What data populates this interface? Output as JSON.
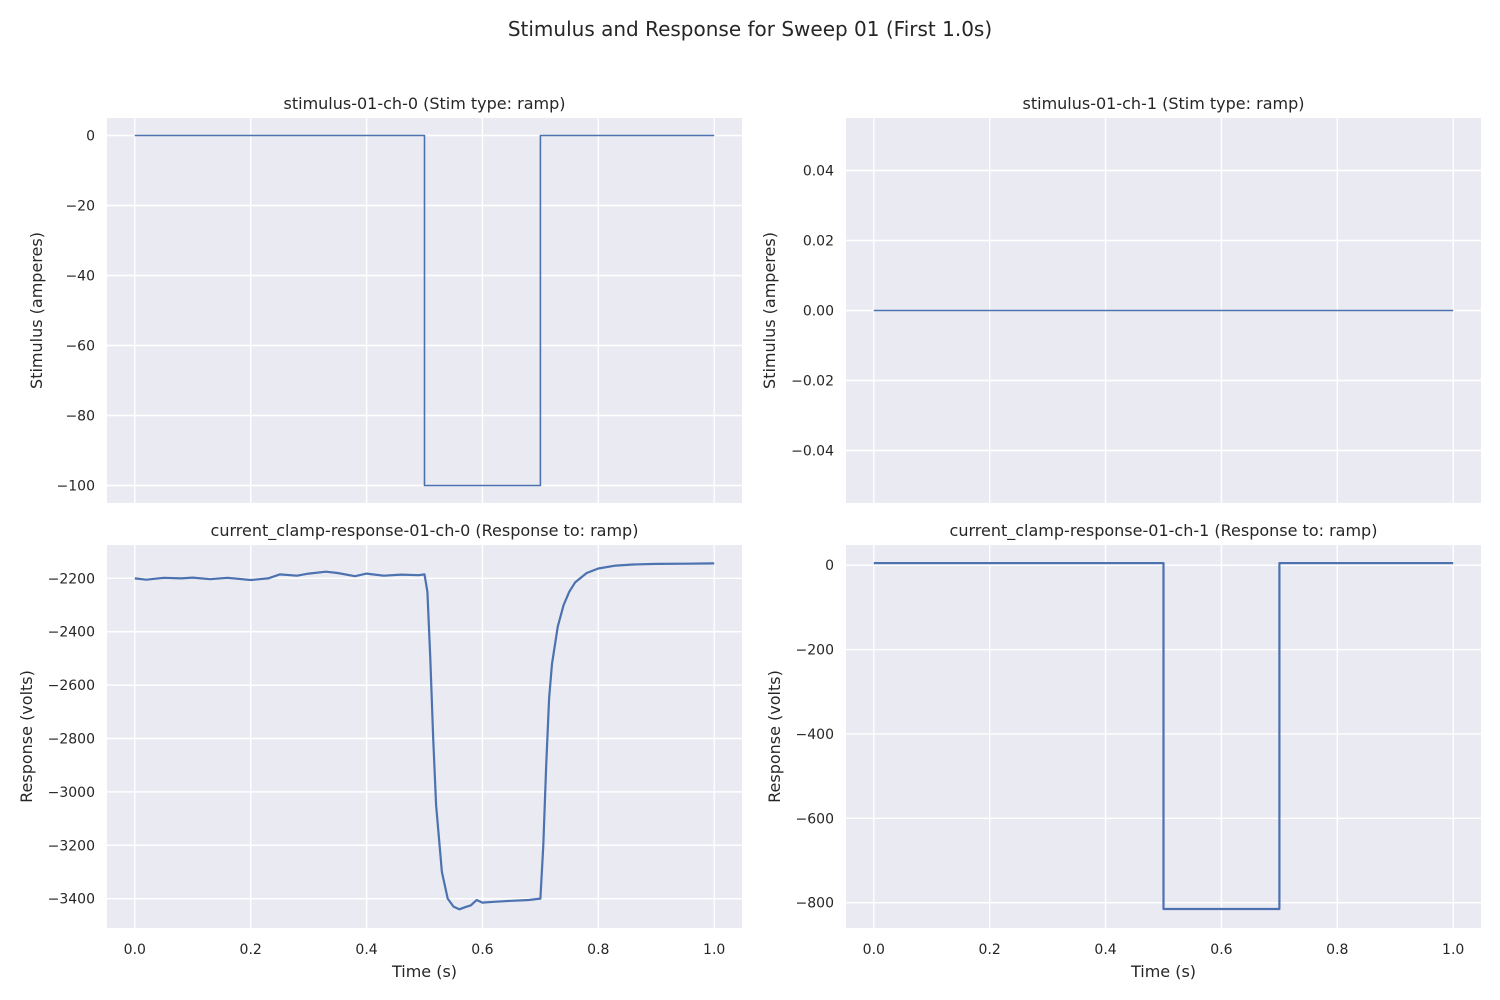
{
  "figure": {
    "title": "Stimulus and Response for Sweep 01 (First 1.0s)"
  },
  "colors": {
    "background": "#ffffff",
    "axes_face": "#eaeaf2",
    "grid": "#ffffff",
    "series": "#4c72b0",
    "text": "#262626"
  },
  "chart_data": [
    {
      "type": "line",
      "title": "stimulus-01-ch-0 (Stim type: ramp)",
      "xlabel": "",
      "ylabel": "Stimulus (amperes)",
      "xlim": [
        -0.048,
        1.048
      ],
      "ylim": [
        -105,
        5
      ],
      "xticks": [],
      "xtick_labels": [],
      "xgrid": [
        0.0,
        0.2,
        0.4,
        0.6,
        0.8,
        1.0
      ],
      "yticks": [
        0,
        -20,
        -40,
        -60,
        -80,
        -100
      ],
      "ytick_labels": [
        "0",
        "−20",
        "−40",
        "−60",
        "−80",
        "−100"
      ],
      "grid": true,
      "series": [
        {
          "x": [
            0.0,
            0.5,
            0.5,
            0.7,
            0.7,
            1.0
          ],
          "y": [
            0,
            0,
            -100,
            -100,
            0,
            0
          ]
        }
      ]
    },
    {
      "type": "line",
      "title": "stimulus-01-ch-1 (Stim type: ramp)",
      "xlabel": "",
      "ylabel": "Stimulus (amperes)",
      "xlim": [
        -0.048,
        1.048
      ],
      "ylim": [
        -0.055,
        0.055
      ],
      "xticks": [],
      "xtick_labels": [],
      "xgrid": [
        0.0,
        0.2,
        0.4,
        0.6,
        0.8,
        1.0
      ],
      "yticks": [
        0.04,
        0.02,
        0.0,
        -0.02,
        -0.04
      ],
      "ytick_labels": [
        "0.04",
        "0.02",
        "0.00",
        "−0.02",
        "−0.04"
      ],
      "grid": true,
      "series": [
        {
          "x": [
            0.0,
            1.0
          ],
          "y": [
            0,
            0
          ]
        }
      ]
    },
    {
      "type": "line",
      "title": "current_clamp-response-01-ch-0 (Response to: ramp)",
      "xlabel": "Time (s)",
      "ylabel": "Response (volts)",
      "xlim": [
        -0.048,
        1.048
      ],
      "ylim": [
        -3510,
        -2075
      ],
      "xticks": [
        0.0,
        0.2,
        0.4,
        0.6,
        0.8,
        1.0
      ],
      "xtick_labels": [
        "0.0",
        "0.2",
        "0.4",
        "0.6",
        "0.8",
        "1.0"
      ],
      "xgrid": [
        0.0,
        0.2,
        0.4,
        0.6,
        0.8,
        1.0
      ],
      "yticks": [
        -2200,
        -2400,
        -2600,
        -2800,
        -3000,
        -3200,
        -3400
      ],
      "ytick_labels": [
        "−2200",
        "−2400",
        "−2600",
        "−2800",
        "−3000",
        "−3200",
        "−3400"
      ],
      "grid": true,
      "series": [
        {
          "x": [
            0.0,
            0.02,
            0.05,
            0.08,
            0.1,
            0.13,
            0.16,
            0.2,
            0.23,
            0.25,
            0.28,
            0.3,
            0.33,
            0.35,
            0.38,
            0.4,
            0.43,
            0.46,
            0.49,
            0.5,
            0.505,
            0.51,
            0.515,
            0.52,
            0.53,
            0.54,
            0.55,
            0.56,
            0.57,
            0.58,
            0.59,
            0.6,
            0.62,
            0.65,
            0.68,
            0.7,
            0.705,
            0.71,
            0.715,
            0.72,
            0.73,
            0.74,
            0.75,
            0.76,
            0.78,
            0.8,
            0.83,
            0.86,
            0.9,
            0.95,
            1.0
          ],
          "y": [
            -2200,
            -2205,
            -2198,
            -2200,
            -2197,
            -2203,
            -2198,
            -2206,
            -2200,
            -2185,
            -2190,
            -2182,
            -2175,
            -2180,
            -2192,
            -2182,
            -2190,
            -2186,
            -2188,
            -2185,
            -2250,
            -2500,
            -2800,
            -3050,
            -3300,
            -3400,
            -3430,
            -3440,
            -3432,
            -3425,
            -3405,
            -3415,
            -3412,
            -3408,
            -3405,
            -3400,
            -3200,
            -2900,
            -2650,
            -2520,
            -2380,
            -2300,
            -2250,
            -2215,
            -2180,
            -2163,
            -2152,
            -2148,
            -2146,
            -2145,
            -2144
          ]
        }
      ]
    },
    {
      "type": "line",
      "title": "current_clamp-response-01-ch-1 (Response to: ramp)",
      "xlabel": "Time (s)",
      "ylabel": "Response (volts)",
      "xlim": [
        -0.048,
        1.048
      ],
      "ylim": [
        -860,
        48
      ],
      "xticks": [
        0.0,
        0.2,
        0.4,
        0.6,
        0.8,
        1.0
      ],
      "xtick_labels": [
        "0.0",
        "0.2",
        "0.4",
        "0.6",
        "0.8",
        "1.0"
      ],
      "xgrid": [
        0.0,
        0.2,
        0.4,
        0.6,
        0.8,
        1.0
      ],
      "yticks": [
        0,
        -200,
        -400,
        -600,
        -800
      ],
      "ytick_labels": [
        "0",
        "−200",
        "−400",
        "−600",
        "−800"
      ],
      "grid": true,
      "series": [
        {
          "x": [
            0.0,
            0.5,
            0.5,
            0.7,
            0.7,
            1.0
          ],
          "y": [
            5,
            5,
            -815,
            -815,
            5,
            5
          ]
        }
      ]
    }
  ]
}
